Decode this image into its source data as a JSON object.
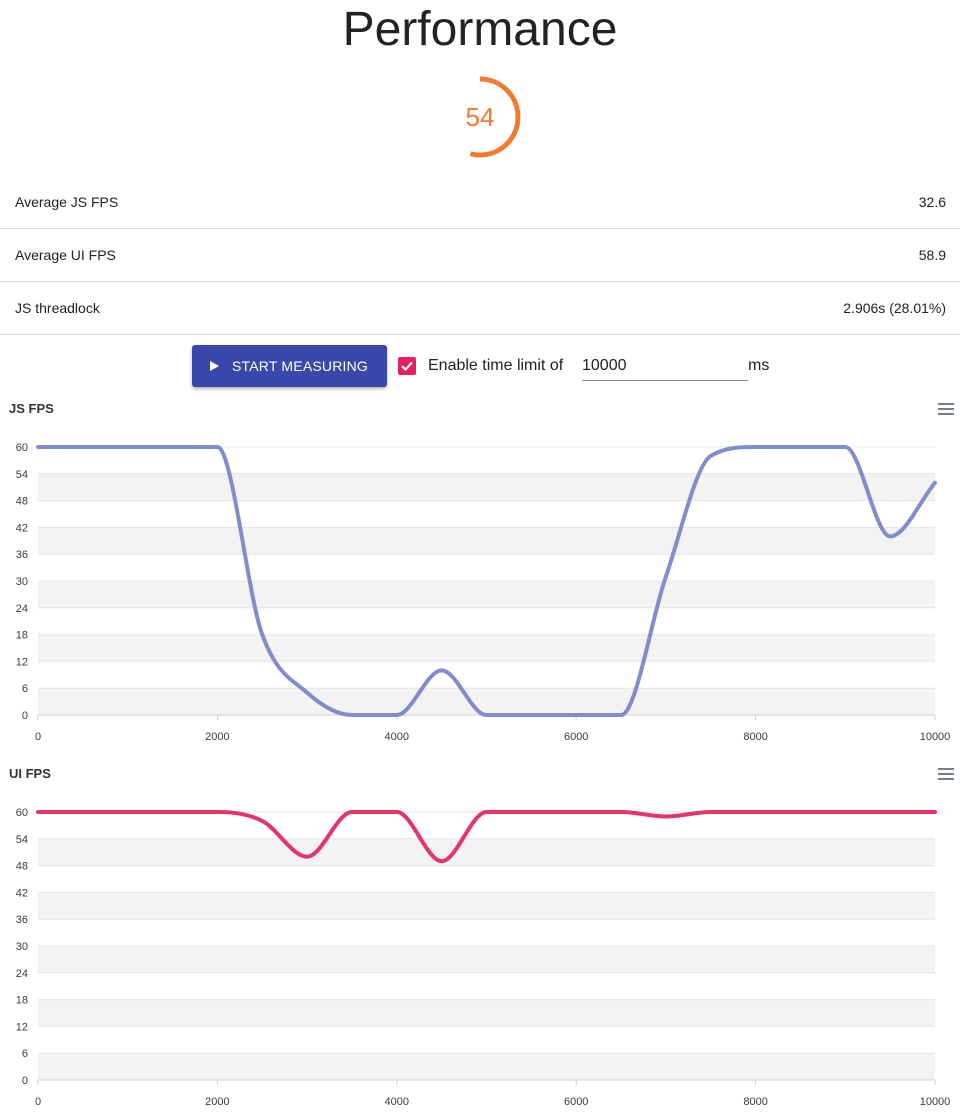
{
  "header": {
    "title": "Performance"
  },
  "score": {
    "value": "54",
    "fraction": 0.54,
    "color": "#f47a2f"
  },
  "stats": [
    {
      "label": "Average JS FPS",
      "value": "32.6"
    },
    {
      "label": "Average UI FPS",
      "value": "58.9"
    },
    {
      "label": "JS threadlock",
      "value": "2.906s (28.01%)"
    }
  ],
  "controls": {
    "start_label": "START MEASURING",
    "start_icon": "play-icon",
    "time_limit_checked": true,
    "time_limit_label": "Enable time limit of",
    "time_limit_value": "10000",
    "time_limit_unit": "ms",
    "accent_color": "#3949ab",
    "checkbox_color": "#e91e63"
  },
  "chart_data": [
    {
      "type": "line",
      "title": "JS FPS",
      "menu_icon": "hamburger-menu-icon",
      "color": "#7f8ecb",
      "grid": true,
      "xlim": [
        0,
        10000
      ],
      "ylim": [
        0,
        60
      ],
      "x_ticks": [
        0,
        2000,
        4000,
        6000,
        8000,
        10000
      ],
      "y_ticks": [
        0,
        6,
        12,
        18,
        24,
        30,
        36,
        42,
        48,
        54,
        60
      ],
      "x": [
        0,
        500,
        1000,
        1500,
        2000,
        2500,
        3000,
        3500,
        4000,
        4500,
        5000,
        5500,
        6000,
        6500,
        7000,
        7500,
        8000,
        8500,
        9000,
        9500,
        10000
      ],
      "y": [
        60,
        60,
        60,
        60,
        60,
        18,
        5,
        0,
        0,
        10,
        0,
        0,
        0,
        0,
        31,
        58,
        60,
        60,
        60,
        40,
        52
      ]
    },
    {
      "type": "line",
      "title": "UI FPS",
      "menu_icon": "hamburger-menu-icon",
      "color": "#e8336a",
      "grid": true,
      "xlim": [
        0,
        10000
      ],
      "ylim": [
        0,
        60
      ],
      "x_ticks": [
        0,
        2000,
        4000,
        6000,
        8000,
        10000
      ],
      "y_ticks": [
        0,
        6,
        12,
        18,
        24,
        30,
        36,
        42,
        48,
        54,
        60
      ],
      "x": [
        0,
        500,
        1000,
        1500,
        2000,
        2500,
        3000,
        3500,
        4000,
        4500,
        5000,
        5500,
        6000,
        6500,
        7000,
        7500,
        8000,
        8500,
        9000,
        9500,
        10000
      ],
      "y": [
        60,
        60,
        60,
        60,
        60,
        58,
        50,
        60,
        60,
        49,
        60,
        60,
        60,
        60,
        59,
        60,
        60,
        60,
        60,
        60,
        60
      ]
    }
  ]
}
